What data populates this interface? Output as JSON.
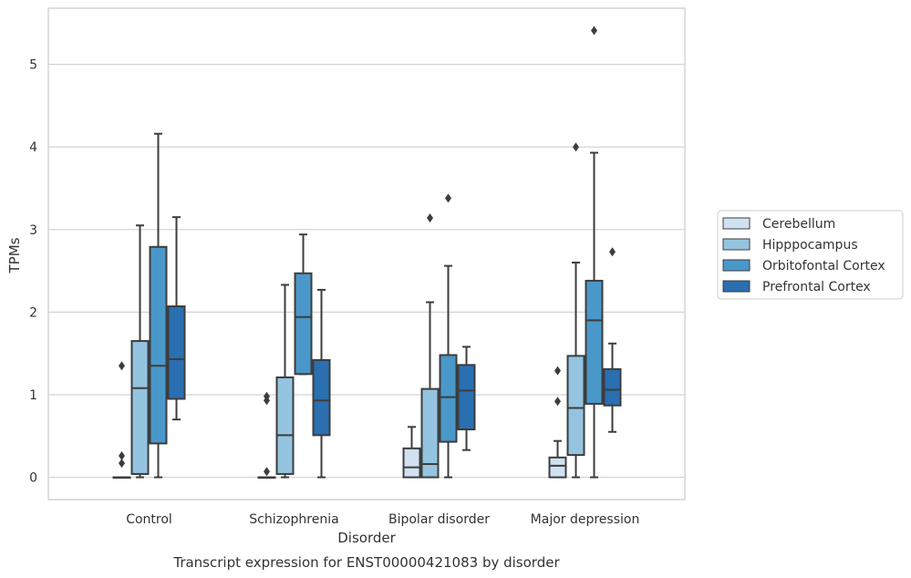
{
  "chart_data": {
    "type": "box",
    "caption": "Transcript expression for ENST00000421083 by disorder",
    "xlabel": "Disorder",
    "ylabel": "TPMs",
    "ylim": [
      -0.27,
      5.68
    ],
    "yticks": [
      0,
      1,
      2,
      3,
      4,
      5
    ],
    "grid": "horizontal",
    "legend_position": "right",
    "categories": [
      "Control",
      "Schizophrenia",
      "Bipolar disorder",
      "Major depression"
    ],
    "series": [
      {
        "name": "Cerebellum",
        "color": "#d0e1f2",
        "boxes": [
          {
            "whislo": 0,
            "q1": 0,
            "med": 0,
            "q3": 0,
            "whishi": 0,
            "fliers": [
              1.35,
              0.26,
              0.17
            ]
          },
          {
            "whislo": 0,
            "q1": 0,
            "med": 0,
            "q3": 0,
            "whishi": 0,
            "fliers": [
              0.98,
              0.93,
              0.07
            ]
          },
          {
            "whislo": 0,
            "q1": 0,
            "med": 0.12,
            "q3": 0.35,
            "whishi": 0.61,
            "fliers": []
          },
          {
            "whislo": 0,
            "q1": 0,
            "med": 0.14,
            "q3": 0.24,
            "whishi": 0.44,
            "fliers": [
              1.29,
              0.92
            ]
          }
        ]
      },
      {
        "name": "Hipppocampus",
        "color": "#94c4df",
        "boxes": [
          {
            "whislo": 0,
            "q1": 0.04,
            "med": 1.08,
            "q3": 1.65,
            "whishi": 3.05,
            "fliers": []
          },
          {
            "whislo": 0,
            "q1": 0.04,
            "med": 0.51,
            "q3": 1.21,
            "whishi": 2.33,
            "fliers": []
          },
          {
            "whislo": 0,
            "q1": 0,
            "med": 0.16,
            "q3": 1.07,
            "whishi": 2.12,
            "fliers": [
              3.14
            ]
          },
          {
            "whislo": 0,
            "q1": 0.27,
            "med": 0.84,
            "q3": 1.47,
            "whishi": 2.6,
            "fliers": [
              4.0
            ]
          }
        ]
      },
      {
        "name": "Orbitofontal Cortex",
        "color": "#4a98c9",
        "boxes": [
          {
            "whislo": 0,
            "q1": 0.41,
            "med": 1.35,
            "q3": 2.79,
            "whishi": 4.16,
            "fliers": []
          },
          {
            "whislo": 1.25,
            "q1": 1.25,
            "med": 1.94,
            "q3": 2.47,
            "whishi": 2.94,
            "fliers": []
          },
          {
            "whislo": 0,
            "q1": 0.43,
            "med": 0.97,
            "q3": 1.48,
            "whishi": 2.56,
            "fliers": [
              3.38
            ]
          },
          {
            "whislo": 0,
            "q1": 0.89,
            "med": 1.9,
            "q3": 2.38,
            "whishi": 3.93,
            "fliers": [
              5.41
            ]
          }
        ]
      },
      {
        "name": "Prefrontal Cortex",
        "color": "#2a6fb0",
        "boxes": [
          {
            "whislo": 0.7,
            "q1": 0.95,
            "med": 1.43,
            "q3": 2.07,
            "whishi": 3.15,
            "fliers": []
          },
          {
            "whislo": 0,
            "q1": 0.51,
            "med": 0.93,
            "q3": 1.42,
            "whishi": 2.27,
            "fliers": []
          },
          {
            "whislo": 0.33,
            "q1": 0.58,
            "med": 1.05,
            "q3": 1.36,
            "whishi": 1.58,
            "fliers": []
          },
          {
            "whislo": 0.55,
            "q1": 0.87,
            "med": 1.06,
            "q3": 1.31,
            "whishi": 1.62,
            "fliers": [
              2.73
            ]
          }
        ]
      }
    ]
  }
}
